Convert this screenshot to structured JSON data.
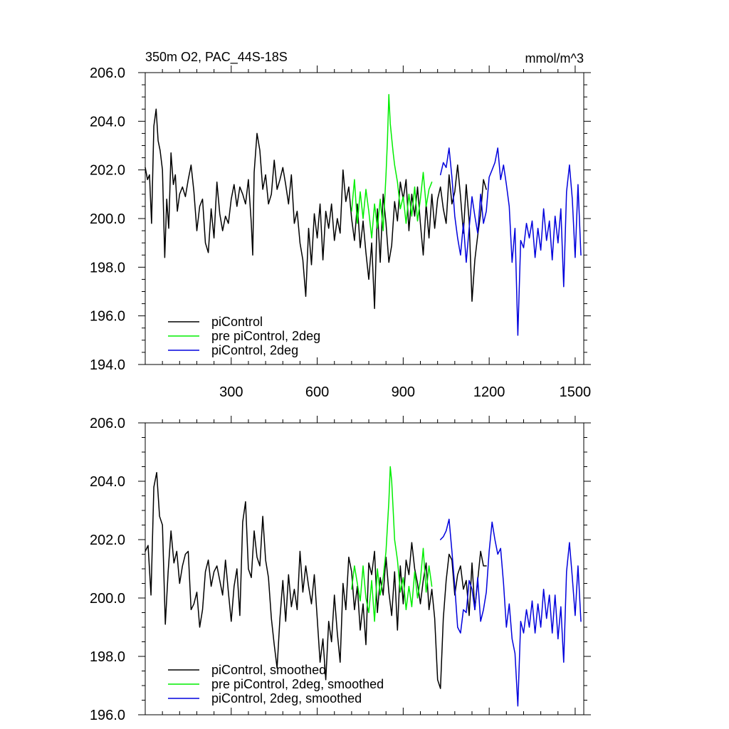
{
  "chart_data": [
    {
      "type": "line",
      "title_left": "350m O2, PAC_44S-18S",
      "title_right": "mmol/m^3",
      "xlabel": "",
      "ylabel": "",
      "xlim": [
        0,
        1530
      ],
      "ylim": [
        194,
        206
      ],
      "x_ticks": [
        300,
        600,
        900,
        1200,
        1500
      ],
      "x_tick_labels": [
        "300",
        "600",
        "900",
        "1200",
        "1500"
      ],
      "y_ticks": [
        194,
        196,
        198,
        200,
        202,
        204,
        206
      ],
      "y_tick_labels": [
        "194.0",
        "196.0",
        "198.0",
        "200.0",
        "202.0",
        "204.0",
        "206.0"
      ],
      "legend_position": "bottom-left",
      "series": [
        {
          "name": "piControl",
          "color": "#000000",
          "x": [
            0,
            8,
            15,
            22,
            30,
            38,
            45,
            52,
            60,
            68,
            75,
            82,
            90,
            98,
            105,
            112,
            120,
            130,
            140,
            150,
            160,
            170,
            180,
            190,
            200,
            210,
            220,
            230,
            240,
            250,
            260,
            270,
            280,
            290,
            300,
            310,
            320,
            330,
            340,
            350,
            360,
            370,
            375,
            380,
            390,
            400,
            410,
            420,
            430,
            440,
            450,
            460,
            470,
            480,
            490,
            500,
            510,
            520,
            530,
            540,
            550,
            560,
            570,
            580,
            590,
            600,
            610,
            620,
            630,
            640,
            650,
            660,
            670,
            680,
            690,
            700,
            710,
            720,
            730,
            740,
            750,
            760,
            770,
            780,
            790,
            800,
            810,
            820,
            830,
            840,
            850,
            860,
            870,
            880,
            890,
            900,
            910,
            920,
            930,
            940,
            950,
            960,
            970,
            980,
            990,
            1000,
            1010,
            1020,
            1030,
            1040,
            1050,
            1060,
            1070,
            1080,
            1090,
            1100,
            1110,
            1120,
            1130,
            1140,
            1150,
            1160,
            1170,
            1180,
            1190
          ],
          "values": [
            202.1,
            201.6,
            201.8,
            199.8,
            203.8,
            204.5,
            203.2,
            202.8,
            202.0,
            198.4,
            200.8,
            199.6,
            202.7,
            201.4,
            201.8,
            200.3,
            201.0,
            201.3,
            200.9,
            201.6,
            202.2,
            201.1,
            199.5,
            200.5,
            200.8,
            199.0,
            198.6,
            200.4,
            199.2,
            201.5,
            200.2,
            199.5,
            200.1,
            199.8,
            200.8,
            201.4,
            200.5,
            201.3,
            201.0,
            200.6,
            201.6,
            199.8,
            198.5,
            201.9,
            203.5,
            202.8,
            201.2,
            201.8,
            200.6,
            201.0,
            202.4,
            201.2,
            201.6,
            202.1,
            201.4,
            200.6,
            201.8,
            199.8,
            200.3,
            199.0,
            198.3,
            196.8,
            199.6,
            198.1,
            200.2,
            199.2,
            200.6,
            198.3,
            200.3,
            199.6,
            200.6,
            199.1,
            200.0,
            199.4,
            202.0,
            200.7,
            201.3,
            200.0,
            199.1,
            200.6,
            198.8,
            199.9,
            198.6,
            197.5,
            199.0,
            196.3,
            200.4,
            198.2,
            201.0,
            199.8,
            198.2,
            198.9,
            200.7,
            199.9,
            201.5,
            200.8,
            201.6,
            199.5,
            201.0,
            200.1,
            201.3,
            199.8,
            198.5,
            200.6,
            199.2,
            201.0,
            199.6,
            200.8,
            201.3,
            200.4,
            199.8,
            201.8,
            200.6,
            201.1,
            202.2,
            200.9,
            199.4,
            201.4,
            199.9,
            196.6,
            198.3,
            199.3,
            200.2,
            201.6,
            201.2
          ]
        },
        {
          "name": "pre piControl, 2deg",
          "color": "#00ee00",
          "x": [
            720,
            730,
            740,
            750,
            760,
            770,
            780,
            790,
            800,
            810,
            820,
            830,
            840,
            845,
            850,
            855,
            860,
            865,
            870,
            880,
            890,
            900,
            910,
            920,
            930,
            940,
            950,
            960,
            970,
            980,
            990,
            1000
          ],
          "values": [
            200.3,
            201.6,
            199.8,
            201.1,
            200.0,
            201.2,
            200.3,
            199.2,
            200.6,
            199.6,
            200.8,
            199.5,
            201.8,
            203.2,
            205.1,
            203.9,
            203.3,
            202.7,
            202.2,
            201.5,
            200.4,
            200.9,
            199.8,
            201.0,
            200.1,
            201.3,
            199.9,
            200.8,
            201.9,
            200.5,
            201.2,
            201.5
          ]
        },
        {
          "name": "piControl, 2deg",
          "color": "#0000dd",
          "x": [
            1030,
            1040,
            1050,
            1060,
            1070,
            1080,
            1090,
            1100,
            1110,
            1120,
            1130,
            1140,
            1150,
            1160,
            1170,
            1180,
            1190,
            1200,
            1210,
            1220,
            1230,
            1240,
            1250,
            1260,
            1270,
            1280,
            1290,
            1300,
            1310,
            1320,
            1330,
            1340,
            1350,
            1360,
            1370,
            1380,
            1390,
            1400,
            1410,
            1420,
            1430,
            1440,
            1450,
            1460,
            1470,
            1480,
            1490,
            1500,
            1510,
            1520
          ],
          "values": [
            201.8,
            202.3,
            202.1,
            202.9,
            201.7,
            200.1,
            199.2,
            198.5,
            199.8,
            198.2,
            199.6,
            200.9,
            200.1,
            199.4,
            201.0,
            199.8,
            200.3,
            201.7,
            202.0,
            202.3,
            202.9,
            201.6,
            202.2,
            201.4,
            200.5,
            198.2,
            199.6,
            195.2,
            199.1,
            198.8,
            199.8,
            199.2,
            199.9,
            198.4,
            199.6,
            198.7,
            200.4,
            199.1,
            199.9,
            198.3,
            200.1,
            199.0,
            200.4,
            197.2,
            201.1,
            202.2,
            200.8,
            198.4,
            201.4,
            198.5
          ]
        }
      ]
    },
    {
      "type": "line",
      "title_left": "",
      "title_right": "",
      "xlabel": "",
      "ylabel": "",
      "xlim": [
        0,
        1530
      ],
      "ylim": [
        196,
        206
      ],
      "x_ticks": [
        300,
        600,
        900,
        1200,
        1500
      ],
      "y_ticks": [
        196,
        198,
        200,
        202,
        204,
        206
      ],
      "y_tick_labels": [
        "196.0",
        "198.0",
        "200.0",
        "202.0",
        "204.0",
        "206.0"
      ],
      "legend_position": "bottom-left",
      "series": [
        {
          "name": "piControl, smoothed",
          "color": "#000000",
          "x": [
            0,
            10,
            20,
            30,
            40,
            50,
            60,
            70,
            80,
            90,
            100,
            110,
            120,
            130,
            140,
            150,
            160,
            170,
            180,
            190,
            200,
            210,
            220,
            230,
            240,
            250,
            260,
            270,
            280,
            290,
            300,
            310,
            320,
            330,
            340,
            350,
            360,
            370,
            380,
            390,
            400,
            410,
            420,
            430,
            440,
            450,
            460,
            470,
            480,
            490,
            500,
            510,
            520,
            530,
            540,
            550,
            560,
            570,
            580,
            590,
            600,
            610,
            620,
            630,
            640,
            650,
            660,
            670,
            680,
            690,
            700,
            710,
            720,
            730,
            740,
            750,
            760,
            770,
            780,
            790,
            800,
            810,
            820,
            830,
            840,
            850,
            860,
            870,
            880,
            890,
            900,
            910,
            920,
            930,
            940,
            950,
            960,
            970,
            980,
            990,
            1000,
            1010,
            1020,
            1030,
            1040,
            1050,
            1060,
            1070,
            1080,
            1090,
            1100,
            1110,
            1120,
            1130,
            1140,
            1150,
            1160,
            1170,
            1180,
            1190
          ],
          "values": [
            201.6,
            201.8,
            200.1,
            203.8,
            204.3,
            202.8,
            202.5,
            199.1,
            200.9,
            202.3,
            201.2,
            201.6,
            200.5,
            201.1,
            201.5,
            201.6,
            199.6,
            199.8,
            200.2,
            199.0,
            199.6,
            200.9,
            201.3,
            200.4,
            200.9,
            201.1,
            200.6,
            200.1,
            201.3,
            200.2,
            199.2,
            200.4,
            201.0,
            199.4,
            202.6,
            203.3,
            201.0,
            200.7,
            202.3,
            201.4,
            201.1,
            202.8,
            201.3,
            200.7,
            199.3,
            198.4,
            197.6,
            199.3,
            200.6,
            199.2,
            200.8,
            199.7,
            200.3,
            199.6,
            201.6,
            200.2,
            201.1,
            200.4,
            199.8,
            200.8,
            199.3,
            197.8,
            198.6,
            197.2,
            199.2,
            198.5,
            200.1,
            198.8,
            197.8,
            200.5,
            199.6,
            201.4,
            200.9,
            199.6,
            200.4,
            198.9,
            199.8,
            198.4,
            201.2,
            200.8,
            201.6,
            199.5,
            200.7,
            200.1,
            201.4,
            200.2,
            199.4,
            200.9,
            198.9,
            201.1,
            199.8,
            201.3,
            200.8,
            201.9,
            201.0,
            200.5,
            199.8,
            200.6,
            201.2,
            199.6,
            200.3,
            199.3,
            197.2,
            196.9,
            199.3,
            200.6,
            201.5,
            201.3,
            200.1,
            200.8,
            201.1,
            200.3,
            200.6,
            199.4,
            201.2,
            199.6,
            200.6,
            201.6,
            201.1,
            201.1
          ]
        },
        {
          "name": "pre piControl, 2deg, smoothed",
          "color": "#00ee00",
          "x": [
            720,
            730,
            740,
            750,
            760,
            770,
            780,
            790,
            800,
            810,
            820,
            830,
            840,
            850,
            855,
            860,
            865,
            870,
            880,
            890,
            900,
            910,
            920,
            930,
            940,
            950,
            960,
            970,
            980,
            990,
            1000
          ],
          "values": [
            200.3,
            201.1,
            200.5,
            199.9,
            201.1,
            200.0,
            199.5,
            200.6,
            199.2,
            201.0,
            200.1,
            200.7,
            201.6,
            203.3,
            204.5,
            204.0,
            203.0,
            202.0,
            201.3,
            200.2,
            200.7,
            199.6,
            200.4,
            199.7,
            200.9,
            200.0,
            200.6,
            201.7,
            200.2,
            201.1,
            200.4
          ]
        },
        {
          "name": "piControl, 2deg, smoothed",
          "color": "#0000dd",
          "x": [
            1030,
            1040,
            1050,
            1060,
            1070,
            1080,
            1090,
            1100,
            1110,
            1120,
            1130,
            1140,
            1150,
            1160,
            1170,
            1180,
            1190,
            1200,
            1210,
            1220,
            1230,
            1240,
            1250,
            1260,
            1270,
            1280,
            1290,
            1300,
            1310,
            1320,
            1330,
            1340,
            1350,
            1360,
            1370,
            1380,
            1390,
            1400,
            1410,
            1420,
            1430,
            1440,
            1450,
            1460,
            1470,
            1480,
            1490,
            1500,
            1510,
            1520
          ],
          "values": [
            202.0,
            202.1,
            202.3,
            202.7,
            201.6,
            200.4,
            199.0,
            198.8,
            199.6,
            199.5,
            200.6,
            200.3,
            199.6,
            200.7,
            199.2,
            199.6,
            200.2,
            201.6,
            202.6,
            202.0,
            201.5,
            201.7,
            200.5,
            199.0,
            199.8,
            198.6,
            198.1,
            196.3,
            199.2,
            198.8,
            199.6,
            199.0,
            199.9,
            198.8,
            199.8,
            199.0,
            200.3,
            199.3,
            200.1,
            198.8,
            200.1,
            198.6,
            199.7,
            197.8,
            200.9,
            201.9,
            200.7,
            199.4,
            201.1,
            199.2
          ]
        }
      ]
    }
  ]
}
